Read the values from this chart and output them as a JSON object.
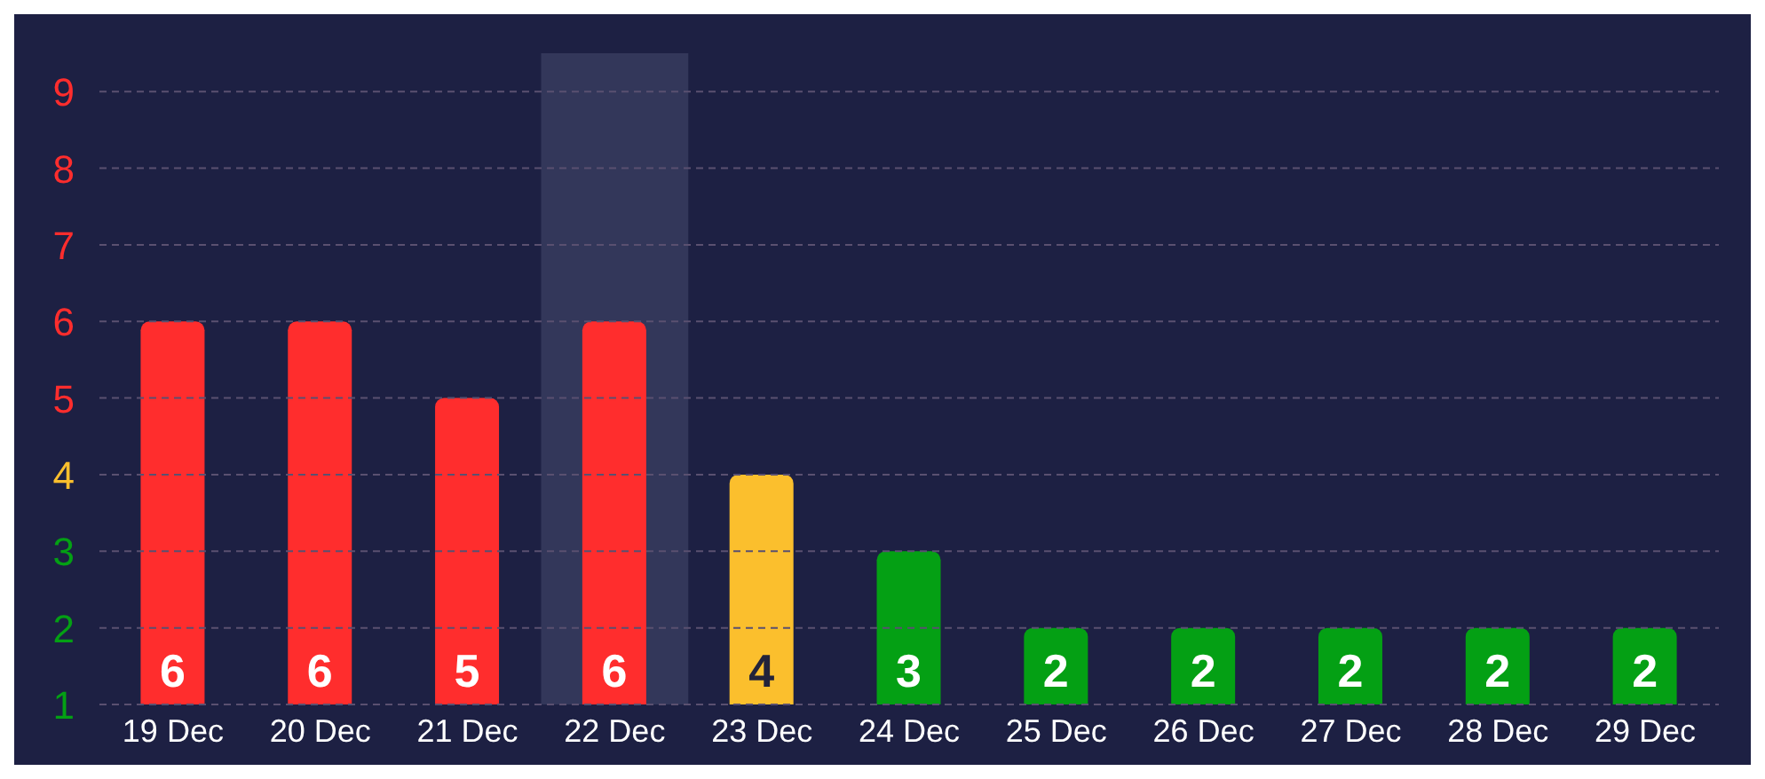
{
  "chart_data": {
    "type": "bar",
    "categories": [
      "19 Dec",
      "20 Dec",
      "21 Dec",
      "22 Dec",
      "23 Dec",
      "24 Dec",
      "25 Dec",
      "26 Dec",
      "27 Dec",
      "28 Dec",
      "29 Dec"
    ],
    "values": [
      6,
      6,
      5,
      6,
      4,
      3,
      2,
      2,
      2,
      2,
      2
    ],
    "colors": [
      "#ff2d2d",
      "#ff2d2d",
      "#ff2d2d",
      "#ff2d2d",
      "#fbbf2d",
      "#04a014",
      "#04a014",
      "#04a014",
      "#04a014",
      "#04a014",
      "#04a014"
    ],
    "ylim": [
      1,
      9.5
    ],
    "yticks": [
      1,
      2,
      3,
      4,
      5,
      6,
      7,
      8,
      9
    ],
    "bands": [
      {
        "axis": "x",
        "from": "22 Dec",
        "to": "22 Dec",
        "color": "#33375a"
      }
    ],
    "grid": "y",
    "data_labels": true
  }
}
